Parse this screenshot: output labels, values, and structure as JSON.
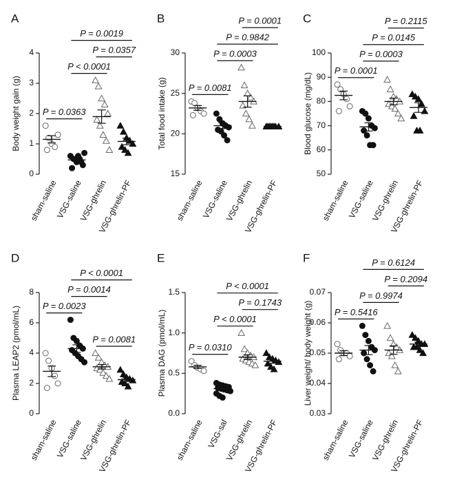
{
  "chart_data": [
    {
      "type": "scatter",
      "panel": "A",
      "ylabel": "Body weight gain (g)",
      "categories": [
        "sham-saline",
        "VSG-saline",
        "VSG-ghrelin",
        "VSG-ghrelin-PF"
      ],
      "markers": [
        "open-circle",
        "filled-circle",
        "open-triangle",
        "filled-triangle"
      ],
      "points": [
        [
          1.6,
          1.2,
          1.0,
          0.9,
          1.3,
          0.8
        ],
        [
          0.6,
          0.5,
          0.4,
          0.5,
          0.3,
          0.2,
          0.5,
          0.6,
          0.4,
          0.7
        ],
        [
          3.1,
          2.9,
          2.5,
          2.3,
          2.0,
          1.8,
          1.6,
          1.3,
          1.1,
          0.8
        ],
        [
          1.6,
          1.4,
          1.2,
          1.1,
          1.0,
          0.9,
          0.8,
          0.7
        ]
      ],
      "means": [
        1.15,
        0.47,
        1.9,
        1.08
      ],
      "sems": [
        0.12,
        0.05,
        0.22,
        0.11
      ],
      "ylim": [
        0,
        4
      ],
      "yticks": [
        0,
        1,
        2,
        3,
        4
      ],
      "comparisons": [
        {
          "label": "P = 0.0363",
          "from": 0,
          "to": 1
        },
        {
          "label": "P < 0.0001",
          "from": 1,
          "to": 2
        },
        {
          "label": "P = 0.0357",
          "from": 2,
          "to": 3
        },
        {
          "label": "P = 0.0019",
          "from": 1,
          "to": 3
        }
      ]
    },
    {
      "type": "scatter",
      "panel": "B",
      "ylabel": "Total food intake (g)",
      "categories": [
        "sham-saline",
        "VSG-saline",
        "VSG-ghrelin",
        "VSG-ghrelin-PF"
      ],
      "markers": [
        "open-circle",
        "filled-circle",
        "open-triangle",
        "filled-triangle"
      ],
      "points": [
        [
          24,
          23.8,
          23.2,
          22.8,
          22.5,
          22.3
        ],
        [
          22.5,
          21.8,
          21.3,
          21,
          20.8,
          20.5,
          20.3,
          19.8,
          19.2
        ],
        [
          28.2,
          26,
          25,
          24.5,
          24,
          23.5,
          22.5,
          21.8,
          21
        ],
        [
          20.9,
          20.9,
          20.9,
          20.9,
          20.9,
          20.9,
          20.9,
          20.9
        ]
      ],
      "means": [
        23.2,
        21,
        24,
        20.9
      ],
      "sems": [
        0.3,
        0.35,
        0.7,
        0.05
      ],
      "ylim": [
        15,
        30
      ],
      "yticks": [
        15,
        20,
        25,
        30
      ],
      "comparisons": [
        {
          "label": "P = 0.0081",
          "from": 0,
          "to": 1
        },
        {
          "label": "P = 0.0003",
          "from": 1,
          "to": 2
        },
        {
          "label": "P = 0.9842",
          "from": 1,
          "to": 3
        },
        {
          "label": "P = 0.0001",
          "from": 2,
          "to": 3
        }
      ]
    },
    {
      "type": "scatter",
      "panel": "C",
      "ylabel": "Blood glucose (mg/dL)",
      "categories": [
        "sham-saline",
        "VSG-saline",
        "VSG-ghrelin",
        "VSG-ghrelin-PF"
      ],
      "markers": [
        "open-circle",
        "filled-circle",
        "open-triangle",
        "filled-triangle"
      ],
      "points": [
        [
          87,
          85,
          83,
          81,
          78,
          76
        ],
        [
          76,
          75,
          73,
          70,
          69,
          68,
          66,
          62,
          62
        ],
        [
          89,
          85,
          82,
          81,
          80,
          79,
          78,
          77,
          75,
          73
        ],
        [
          83,
          82,
          81,
          79,
          76,
          74,
          68,
          68
        ]
      ],
      "means": [
        82.5,
        69.5,
        80,
        77.5
      ],
      "sems": [
        1.8,
        1.7,
        1.4,
        2
      ],
      "ylim": [
        50,
        100
      ],
      "yticks": [
        50,
        60,
        70,
        80,
        90,
        100
      ],
      "comparisons": [
        {
          "label": "P = 0.0001",
          "from": 0,
          "to": 1
        },
        {
          "label": "P = 0.0003",
          "from": 1,
          "to": 2
        },
        {
          "label": "P = 0.0145",
          "from": 1,
          "to": 3
        },
        {
          "label": "P = 0.2115",
          "from": 2,
          "to": 3
        }
      ]
    },
    {
      "type": "scatter",
      "panel": "D",
      "ylabel": "Plasma LEAP2 (pmol/mL)",
      "categories": [
        "sham-saline",
        "VSG-saline",
        "VSG-ghrelin",
        "VSG-ghrelin-PF"
      ],
      "markers": [
        "open-circle",
        "filled-circle",
        "open-triangle",
        "filled-triangle"
      ],
      "points": [
        [
          4,
          3.5,
          3,
          2.5,
          2,
          1.7
        ],
        [
          6.2,
          5,
          4.8,
          4.5,
          4.3,
          4.2,
          4,
          3.8,
          3.6,
          3.4
        ],
        [
          4,
          3.7,
          3.4,
          3.2,
          3.1,
          3,
          2.9,
          2.7,
          2.5,
          2.3
        ],
        [
          2.9,
          2.6,
          2.4,
          2.3,
          2.2,
          2.1,
          2,
          1.8
        ]
      ],
      "means": [
        2.8,
        4.3,
        3.1,
        2.25
      ],
      "sems": [
        0.35,
        0.25,
        0.15,
        0.12
      ],
      "ylim": [
        0,
        8
      ],
      "yticks": [
        0,
        2,
        4,
        6,
        8
      ],
      "comparisons": [
        {
          "label": "P = 0.0023",
          "from": 0,
          "to": 1
        },
        {
          "label": "P = 0.0081",
          "from": 2,
          "to": 3
        },
        {
          "label": "P = 0.0014",
          "from": 1,
          "to": 2
        },
        {
          "label": "P < 0.0001",
          "from": 1,
          "to": 3
        }
      ]
    },
    {
      "type": "scatter",
      "panel": "E",
      "ylabel": "Plasma DAG (pmol/mL)",
      "categories": [
        "sham-saline",
        "VSG-sal",
        "VSG-ghrelin",
        "VSG-ghrelin-PF"
      ],
      "markers": [
        "open-circle",
        "filled-circle",
        "open-triangle",
        "filled-triangle"
      ],
      "points": [
        [
          0.65,
          0.6,
          0.57,
          0.55,
          0.53
        ],
        [
          0.38,
          0.36,
          0.35,
          0.34,
          0.33,
          0.32,
          0.31,
          0.3,
          0.29,
          0.28,
          0.25,
          0.22,
          0.2
        ],
        [
          1.0,
          0.8,
          0.75,
          0.72,
          0.7,
          0.68,
          0.66,
          0.64,
          0.62,
          0.6
        ],
        [
          0.75,
          0.7,
          0.68,
          0.66,
          0.64,
          0.62,
          0.58,
          0.55
        ]
      ],
      "means": [
        0.58,
        0.31,
        0.7,
        0.65
      ],
      "sems": [
        0.02,
        0.015,
        0.03,
        0.025
      ],
      "ylim": [
        0,
        1.5
      ],
      "yticks": [
        {
          "value": 0,
          "label": "0.0"
        },
        0.5,
        {
          "value": 1,
          "label": "1.0"
        },
        1.5
      ],
      "comparisons": [
        {
          "label": "P = 0.0310",
          "from": 0,
          "to": 1
        },
        {
          "label": "P < 0.0001",
          "from": 1,
          "to": 2
        },
        {
          "label": "P = 0.1743",
          "from": 2,
          "to": 3
        },
        {
          "label": "P < 0.0001",
          "from": 1,
          "to": 3
        }
      ]
    },
    {
      "type": "scatter",
      "panel": "F",
      "ylabel": "Liver weight/ body weight (g)",
      "categories": [
        "sham-saline",
        "VSG-saline",
        "VSG-ghrelin",
        "VSG-ghrelin-PF"
      ],
      "markers": [
        "open-circle",
        "filled-circle",
        "open-triangle",
        "filled-triangle"
      ],
      "points": [
        [
          0.053,
          0.051,
          0.05,
          0.05,
          0.049,
          0.048
        ],
        [
          0.059,
          0.056,
          0.054,
          0.052,
          0.051,
          0.05,
          0.048,
          0.046,
          0.044
        ],
        [
          0.059,
          0.055,
          0.053,
          0.052,
          0.051,
          0.05,
          0.049,
          0.046,
          0.044
        ],
        [
          0.056,
          0.055,
          0.054,
          0.053,
          0.053,
          0.052,
          0.052,
          0.051,
          0.05
        ]
      ],
      "means": [
        0.05,
        0.051,
        0.051,
        0.053
      ],
      "sems": [
        0.0008,
        0.0015,
        0.0014,
        0.0006
      ],
      "ylim": [
        0.03,
        0.07
      ],
      "yticks": [
        0.03,
        0.04,
        0.05,
        0.06,
        0.07
      ],
      "comparisons": [
        {
          "label": "P = 0.5416",
          "from": 0,
          "to": 1
        },
        {
          "label": "P = 0.9974",
          "from": 1,
          "to": 2
        },
        {
          "label": "P = 0.2094",
          "from": 2,
          "to": 3
        },
        {
          "label": "P = 0.6124",
          "from": 1,
          "to": 3
        }
      ]
    }
  ]
}
